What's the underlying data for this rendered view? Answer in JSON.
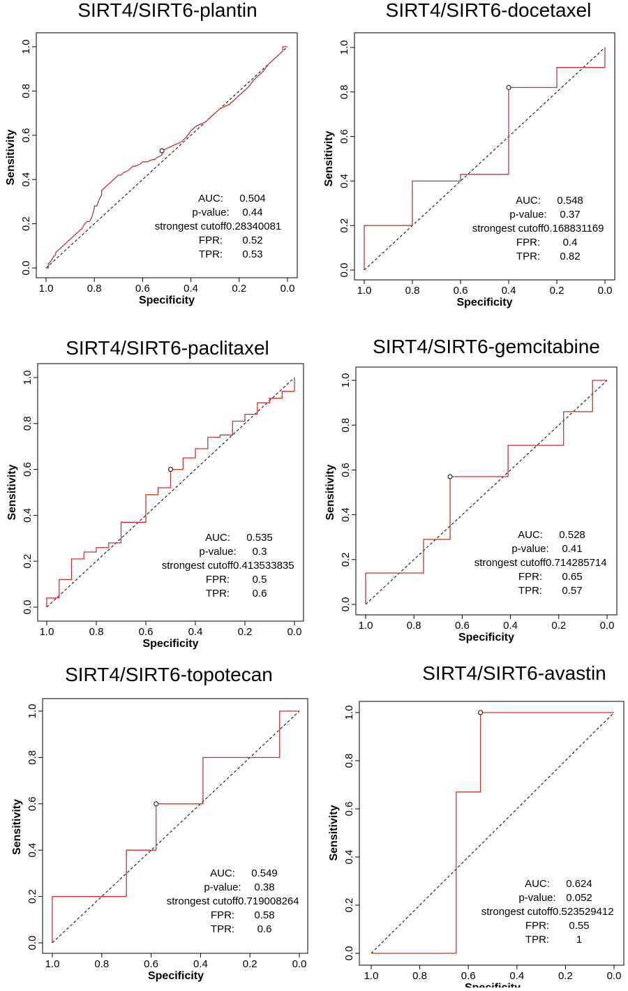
{
  "figure": {
    "stat_labels": {
      "auc": "AUC:",
      "pvalue": "p-value:",
      "cutoff": "strongest cutoff",
      "fpr": "FPR:",
      "tpr": "TPR:"
    },
    "colors": {
      "roc": "#c8322e",
      "diagonal": "#000000",
      "axis": "#000000"
    }
  },
  "chart_data": [
    {
      "type": "line",
      "title": "SIRT4/SIRT6-plantin",
      "xlabel": "Specificity",
      "ylabel": "Sensitivity",
      "xlim": [
        1.0,
        0.0
      ],
      "ylim": [
        0.0,
        1.0
      ],
      "xticks": [
        "1.0",
        "0.8",
        "0.6",
        "0.4",
        "0.2",
        "0.0"
      ],
      "yticks": [
        "0.0",
        "0.2",
        "0.4",
        "0.6",
        "0.8",
        "1.0"
      ],
      "roc": {
        "specificity": [
          1.0,
          0.99,
          0.99,
          0.98,
          0.97,
          0.96,
          0.96,
          0.94,
          0.93,
          0.92,
          0.91,
          0.9,
          0.89,
          0.88,
          0.87,
          0.86,
          0.85,
          0.84,
          0.83,
          0.82,
          0.81,
          0.8,
          0.8,
          0.79,
          0.78,
          0.77,
          0.77,
          0.76,
          0.75,
          0.74,
          0.73,
          0.72,
          0.71,
          0.7,
          0.69,
          0.68,
          0.66,
          0.65,
          0.64,
          0.63,
          0.61,
          0.6,
          0.58,
          0.56,
          0.55,
          0.54,
          0.52,
          0.52,
          0.5,
          0.48,
          0.46,
          0.44,
          0.42,
          0.4,
          0.38,
          0.36,
          0.34,
          0.32,
          0.3,
          0.28,
          0.26,
          0.24,
          0.22,
          0.2,
          0.18,
          0.16,
          0.14,
          0.12,
          0.1,
          0.08,
          0.06,
          0.04,
          0.02,
          0.02,
          0.0
        ],
        "sensitivity": [
          0.0,
          0.0,
          0.02,
          0.03,
          0.05,
          0.06,
          0.07,
          0.09,
          0.1,
          0.11,
          0.12,
          0.13,
          0.14,
          0.15,
          0.16,
          0.17,
          0.18,
          0.2,
          0.21,
          0.21,
          0.23,
          0.27,
          0.28,
          0.28,
          0.31,
          0.33,
          0.35,
          0.36,
          0.37,
          0.38,
          0.39,
          0.4,
          0.41,
          0.42,
          0.42,
          0.43,
          0.44,
          0.45,
          0.46,
          0.46,
          0.47,
          0.48,
          0.48,
          0.49,
          0.49,
          0.5,
          0.51,
          0.53,
          0.54,
          0.55,
          0.56,
          0.57,
          0.59,
          0.62,
          0.64,
          0.65,
          0.66,
          0.68,
          0.7,
          0.72,
          0.73,
          0.74,
          0.76,
          0.78,
          0.8,
          0.82,
          0.85,
          0.87,
          0.89,
          0.92,
          0.94,
          0.96,
          0.98,
          1.0,
          1.0
        ]
      },
      "point": {
        "specificity": 0.52,
        "sensitivity": 0.53
      },
      "stats": {
        "auc": "0.504",
        "pvalue": "0.44",
        "cutoff": "0.28340081",
        "fpr": "0.52",
        "tpr": "0.53"
      }
    },
    {
      "type": "line",
      "title": "SIRT4/SIRT6-docetaxel",
      "xlabel": "Specificity",
      "ylabel": "Sensitivity",
      "xlim": [
        1.0,
        0.0
      ],
      "ylim": [
        0.0,
        1.0
      ],
      "xticks": [
        "1.0",
        "0.8",
        "0.6",
        "0.4",
        "0.2",
        "0.0"
      ],
      "yticks": [
        "0.0",
        "0.2",
        "0.4",
        "0.6",
        "0.8",
        "1.0"
      ],
      "roc": {
        "specificity": [
          1.0,
          1.0,
          0.8,
          0.8,
          0.6,
          0.6,
          0.4,
          0.4,
          0.2,
          0.2,
          0.0,
          0.0
        ],
        "sensitivity": [
          0.0,
          0.2,
          0.2,
          0.4,
          0.4,
          0.43,
          0.43,
          0.82,
          0.82,
          0.91,
          0.91,
          1.0
        ]
      },
      "point": {
        "specificity": 0.4,
        "sensitivity": 0.82
      },
      "stats": {
        "auc": "0.548",
        "pvalue": "0.37",
        "cutoff": "0.168831169",
        "fpr": "0.4",
        "tpr": "0.82"
      }
    },
    {
      "type": "line",
      "title": "SIRT4/SIRT6-paclitaxel",
      "xlabel": "Specificity",
      "ylabel": "Sensitivity",
      "xlim": [
        1.0,
        0.0
      ],
      "ylim": [
        0.0,
        1.0
      ],
      "xticks": [
        "1.0",
        "0.8",
        "0.6",
        "0.4",
        "0.2",
        "0.0"
      ],
      "yticks": [
        "0.0",
        "0.2",
        "0.4",
        "0.6",
        "0.8",
        "1.0"
      ],
      "roc": {
        "specificity": [
          1.0,
          1.0,
          0.95,
          0.95,
          0.9,
          0.9,
          0.85,
          0.85,
          0.8,
          0.8,
          0.75,
          0.75,
          0.7,
          0.7,
          0.6,
          0.6,
          0.55,
          0.55,
          0.5,
          0.5,
          0.45,
          0.45,
          0.4,
          0.4,
          0.35,
          0.35,
          0.3,
          0.3,
          0.25,
          0.25,
          0.2,
          0.2,
          0.15,
          0.15,
          0.1,
          0.1,
          0.05,
          0.05,
          0.0,
          0.0
        ],
        "sensitivity": [
          0.0,
          0.04,
          0.04,
          0.12,
          0.12,
          0.21,
          0.21,
          0.24,
          0.24,
          0.26,
          0.26,
          0.28,
          0.28,
          0.37,
          0.37,
          0.49,
          0.49,
          0.52,
          0.52,
          0.6,
          0.6,
          0.65,
          0.65,
          0.69,
          0.69,
          0.74,
          0.74,
          0.75,
          0.75,
          0.81,
          0.81,
          0.84,
          0.84,
          0.89,
          0.89,
          0.91,
          0.91,
          0.94,
          0.94,
          1.0
        ]
      },
      "point": {
        "specificity": 0.5,
        "sensitivity": 0.6
      },
      "stats": {
        "auc": "0.535",
        "pvalue": "0.3",
        "cutoff": "0.413533835",
        "fpr": "0.5",
        "tpr": "0.6"
      }
    },
    {
      "type": "line",
      "title": "SIRT4/SIRT6-gemcitabine",
      "xlabel": "Specificity",
      "ylabel": "Sensitivity",
      "xlim": [
        1.0,
        0.0
      ],
      "ylim": [
        0.0,
        1.0
      ],
      "xticks": [
        "1.0",
        "0.8",
        "0.6",
        "0.4",
        "0.2",
        "0.0"
      ],
      "yticks": [
        "0.0",
        "0.2",
        "0.4",
        "0.6",
        "0.8",
        "1.0"
      ],
      "roc": {
        "specificity": [
          1.0,
          1.0,
          0.76,
          0.76,
          0.65,
          0.65,
          0.41,
          0.41,
          0.18,
          0.18,
          0.06,
          0.06,
          0.0
        ],
        "sensitivity": [
          0.0,
          0.14,
          0.14,
          0.29,
          0.29,
          0.57,
          0.57,
          0.71,
          0.71,
          0.86,
          0.86,
          1.0,
          1.0
        ]
      },
      "point": {
        "specificity": 0.65,
        "sensitivity": 0.57
      },
      "stats": {
        "auc": "0.528",
        "pvalue": "0.41",
        "cutoff": "0.714285714",
        "fpr": "0.65",
        "tpr": "0.57"
      }
    },
    {
      "type": "line",
      "title": "SIRT4/SIRT6-topotecan",
      "xlabel": "Specificity",
      "ylabel": "Sensitivity",
      "xlim": [
        1.0,
        0.0
      ],
      "ylim": [
        0.0,
        1.0
      ],
      "xticks": [
        "1.0",
        "0.8",
        "0.6",
        "0.4",
        "0.2",
        "0.0"
      ],
      "yticks": [
        "0.0",
        "0.2",
        "0.4",
        "0.6",
        "0.8",
        "1.0"
      ],
      "roc": {
        "specificity": [
          1.0,
          1.0,
          0.7,
          0.7,
          0.58,
          0.58,
          0.39,
          0.39,
          0.08,
          0.08,
          0.0
        ],
        "sensitivity": [
          0.0,
          0.2,
          0.2,
          0.4,
          0.4,
          0.6,
          0.6,
          0.8,
          0.8,
          1.0,
          1.0
        ]
      },
      "point": {
        "specificity": 0.58,
        "sensitivity": 0.6
      },
      "stats": {
        "auc": "0.549",
        "pvalue": "0.38",
        "cutoff": "0.719008264",
        "fpr": "0.58",
        "tpr": "0.6"
      }
    },
    {
      "type": "line",
      "title": "SIRT4/SIRT6-avastin",
      "xlabel": "Specificity",
      "ylabel": "Sensitivity",
      "xlim": [
        1.0,
        0.0
      ],
      "ylim": [
        0.0,
        1.0
      ],
      "xticks": [
        "1.0",
        "0.8",
        "0.6",
        "0.4",
        "0.2",
        "0.0"
      ],
      "yticks": [
        "0.0",
        "0.2",
        "0.4",
        "0.6",
        "0.8",
        "1.0"
      ],
      "roc": {
        "specificity": [
          1.0,
          0.65,
          0.65,
          0.55,
          0.55,
          0.0
        ],
        "sensitivity": [
          0.0,
          0.0,
          0.67,
          0.67,
          1.0,
          1.0
        ]
      },
      "point": {
        "specificity": 0.55,
        "sensitivity": 1.0
      },
      "stats": {
        "auc": "0.624",
        "pvalue": "0.052",
        "cutoff": "0.523529412",
        "fpr": "0.55",
        "tpr": "1"
      }
    }
  ]
}
